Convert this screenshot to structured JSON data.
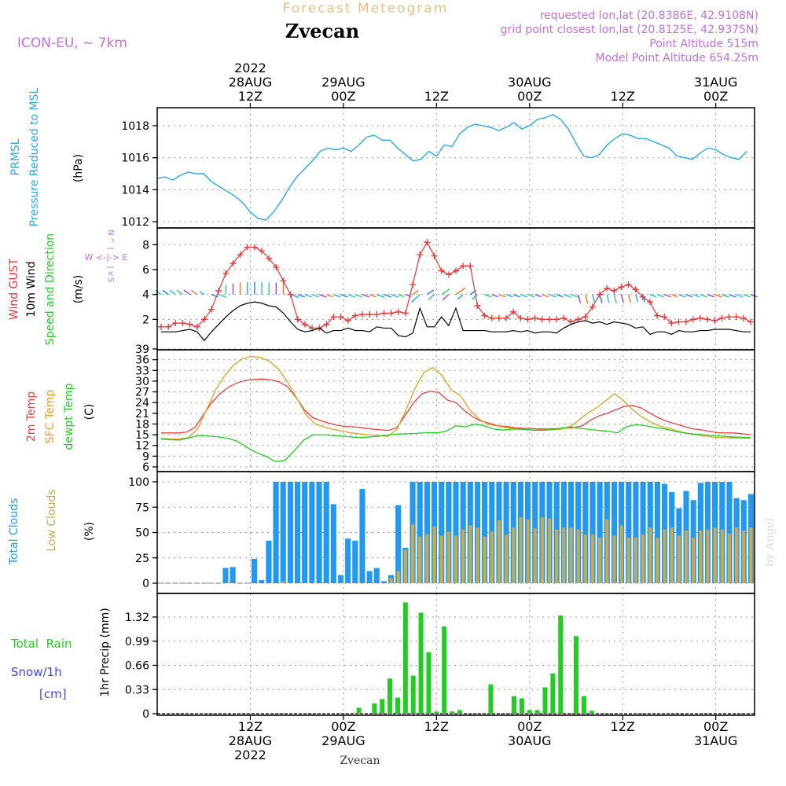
{
  "header": {
    "product_title": "Forecast Meteogram",
    "location": "Zvecan",
    "model": "ICON-EU, ~ 7km",
    "requested": "requested lon,lat (20.8386E, 42.9108N)",
    "grid_point": "grid point closest lon,lat (20.8125E, 42.9375N)",
    "point_altitude": "Point Altitude 515m",
    "model_altitude": "Model Point Altitude 654.25m",
    "watermark": "by Angel",
    "footer_location": "Zvecan"
  },
  "colors": {
    "pressure": "#2aa7e8",
    "gust": "#ee3333",
    "wind": "#000000",
    "temp2m": "#e84040",
    "sfc": "#dda020",
    "dewpt": "#22cc22",
    "total_clouds": "#2299ee",
    "low_clouds": "#c8a850",
    "rain": "#22cc22",
    "header_purple": "#c070e0",
    "header_gold": "#e8c080",
    "snow": "#4444ee"
  },
  "time_axis": {
    "top_labels": [
      {
        "t": 12,
        "lines": [
          "2022",
          "28AUG",
          "12Z"
        ]
      },
      {
        "t": 24,
        "lines": [
          "29AUG",
          "00Z"
        ]
      },
      {
        "t": 36,
        "lines": [
          "12Z"
        ]
      },
      {
        "t": 48,
        "lines": [
          "30AUG",
          "00Z"
        ]
      },
      {
        "t": 60,
        "lines": [
          "12Z"
        ]
      },
      {
        "t": 72,
        "lines": [
          "31AUG",
          "00Z"
        ]
      }
    ],
    "bottom_labels": [
      {
        "t": 12,
        "lines": [
          "12Z",
          "28AUG",
          "2022"
        ]
      },
      {
        "t": 24,
        "lines": [
          "00Z",
          "29AUG"
        ]
      },
      {
        "t": 36,
        "lines": [
          "12Z"
        ]
      },
      {
        "t": 48,
        "lines": [
          "00Z",
          "30AUG"
        ]
      },
      {
        "t": 60,
        "lines": [
          "12Z"
        ]
      },
      {
        "t": 72,
        "lines": [
          "00Z",
          "31AUG"
        ]
      }
    ]
  },
  "chart_data": [
    {
      "type": "line",
      "name": "pressure",
      "labels": [
        "PRMSL",
        "Pressure Reduced to MSL",
        "(hPa)"
      ],
      "yticks": [
        1012,
        1014,
        1016,
        1018
      ],
      "ylim": [
        1011.5,
        1019.0
      ],
      "x": [
        0,
        1,
        2,
        3,
        4,
        5,
        6,
        7,
        8,
        9,
        10,
        11,
        12,
        13,
        14,
        15,
        16,
        17,
        18,
        19,
        20,
        21,
        22,
        23,
        24,
        25,
        26,
        27,
        28,
        29,
        30,
        31,
        32,
        33,
        34,
        35,
        36,
        37,
        38,
        39,
        40,
        41,
        42,
        43,
        44,
        45,
        46,
        47,
        48,
        49,
        50,
        51,
        52,
        53,
        54,
        55,
        56,
        57,
        58,
        59,
        60,
        61,
        62,
        63,
        64,
        65,
        66,
        67,
        68,
        69,
        70,
        71,
        72,
        73,
        74,
        75,
        76
      ],
      "values": [
        1014.7,
        1014.8,
        1014.6,
        1014.9,
        1015.1,
        1015.0,
        1015.0,
        1014.5,
        1014.2,
        1013.9,
        1013.6,
        1013.2,
        1012.6,
        1012.2,
        1012.1,
        1012.6,
        1013.3,
        1014.1,
        1014.8,
        1015.3,
        1015.8,
        1016.4,
        1016.6,
        1016.5,
        1016.6,
        1016.4,
        1016.8,
        1017.3,
        1017.4,
        1017.1,
        1017.1,
        1016.6,
        1016.2,
        1015.8,
        1015.9,
        1016.4,
        1016.1,
        1016.8,
        1016.7,
        1017.5,
        1017.9,
        1018.1,
        1018.0,
        1017.9,
        1017.7,
        1017.9,
        1018.2,
        1017.8,
        1018.0,
        1018.4,
        1018.5,
        1018.7,
        1018.4,
        1017.8,
        1016.9,
        1016.1,
        1016.0,
        1016.2,
        1016.8,
        1017.2,
        1017.5,
        1017.4,
        1017.2,
        1017.2,
        1017.0,
        1016.8,
        1016.6,
        1016.1,
        1016.0,
        1015.9,
        1016.3,
        1016.6,
        1016.5,
        1016.2,
        1016.0,
        1015.9,
        1016.4
      ]
    },
    {
      "type": "line",
      "name": "wind",
      "labels": [
        "Wind GUST",
        "10m Wind",
        "Speed and Direction",
        "(m/s)"
      ],
      "compass": [
        "N",
        "^",
        "|",
        "W <-|-> E",
        "|",
        "v",
        "S"
      ],
      "yticks": [
        2,
        4,
        6,
        8
      ],
      "ylim": [
        0,
        9
      ],
      "gust": [
        1.4,
        1.4,
        1.7,
        1.7,
        1.6,
        1.4,
        2.0,
        2.8,
        4.3,
        5.7,
        6.5,
        7.2,
        7.8,
        7.8,
        7.5,
        6.9,
        6.2,
        5.1,
        4.0,
        2.0,
        1.6,
        1.3,
        1.3,
        1.6,
        2.2,
        2.2,
        1.9,
        2.3,
        2.4,
        2.4,
        2.4,
        2.5,
        2.5,
        2.6,
        2.5,
        4.8,
        7.2,
        8.2,
        7.1,
        5.9,
        5.6,
        5.9,
        6.3,
        6.3,
        3.1,
        2.3,
        2.1,
        2.1,
        2.1,
        2.6,
        2.1,
        2.0,
        2.1,
        2.0,
        2.0,
        2.0,
        2.1,
        1.8,
        2.0,
        2.2,
        3.0,
        4.0,
        4.5,
        4.3,
        4.6,
        4.8,
        4.4,
        3.8,
        3.4,
        2.3,
        2.2,
        1.7,
        1.8,
        1.8,
        2.0,
        2.1,
        2.0,
        1.9,
        2.1,
        2.2,
        2.2,
        2.1,
        1.8
      ],
      "wind": [
        1.0,
        1.0,
        1.0,
        1.1,
        1.2,
        1.0,
        0.3,
        1.0,
        1.6,
        2.2,
        2.7,
        3.1,
        3.3,
        3.4,
        3.3,
        3.1,
        3.0,
        2.5,
        1.8,
        1.2,
        1.0,
        1.1,
        1.3,
        0.9,
        1.1,
        1.1,
        1.3,
        1.1,
        1.1,
        1.0,
        1.4,
        1.3,
        1.3,
        0.7,
        0.6,
        0.9,
        2.9,
        1.4,
        1.4,
        2.2,
        1.5,
        2.9,
        1.1,
        1.1,
        1.1,
        1.1,
        1.0,
        1.0,
        1.0,
        1.1,
        1.0,
        1.1,
        0.9,
        1.0,
        1.0,
        0.9,
        1.3,
        1.6,
        1.8,
        1.9,
        1.7,
        1.8,
        1.6,
        1.8,
        1.7,
        1.6,
        1.3,
        1.4,
        0.8,
        1.0,
        1.0,
        0.8,
        1.1,
        1.0,
        1.0,
        1.1,
        1.1,
        1.2,
        1.2,
        1.2,
        1.1,
        1.0,
        1.0
      ]
    },
    {
      "type": "line",
      "name": "temperature",
      "labels": [
        "2m Temp",
        "SFC Temp",
        "dewpt Temp",
        "(C)"
      ],
      "yticks": [
        6,
        9,
        12,
        15,
        18,
        21,
        24,
        27,
        30,
        33,
        36,
        39
      ],
      "ylim": [
        6,
        39
      ],
      "x": [
        0,
        1,
        2,
        3,
        4,
        5,
        6,
        7,
        8,
        9,
        10,
        11,
        12,
        13,
        14,
        15,
        16,
        17,
        18,
        19,
        20,
        21,
        22,
        23,
        24,
        25,
        26,
        27,
        28,
        29,
        30,
        31,
        32,
        33,
        34,
        35,
        36,
        37,
        38,
        39,
        40,
        41,
        42,
        43,
        44,
        45,
        46,
        47,
        48,
        49,
        50,
        51,
        52,
        53,
        54,
        55,
        56,
        57,
        58,
        59,
        60,
        61,
        62,
        63,
        64,
        65,
        66,
        67,
        68,
        69,
        70,
        71,
        72,
        73,
        74,
        75,
        76
      ],
      "temp2m": [
        15.5,
        15.5,
        15.5,
        15.7,
        17.0,
        20.5,
        24.0,
        26.5,
        28.3,
        29.5,
        30.2,
        30.5,
        30.6,
        30.4,
        29.8,
        28.5,
        25.5,
        22.0,
        19.8,
        18.9,
        18.2,
        17.6,
        17.3,
        17.2,
        16.9,
        16.6,
        16.4,
        16.2,
        17.0,
        20.5,
        24.0,
        26.5,
        27.2,
        26.8,
        24.7,
        24.0,
        21.8,
        20.0,
        18.8,
        18.2,
        17.5,
        17.3,
        17.0,
        16.8,
        16.7,
        16.6,
        16.6,
        16.7,
        16.8,
        17.0,
        17.5,
        19.1,
        20.3,
        21.0,
        22.0,
        22.9,
        23.2,
        22.5,
        21.1,
        19.8,
        18.8,
        18.1,
        17.4,
        16.7,
        16.4,
        16.0,
        15.6,
        15.5,
        15.5,
        15.3,
        15.0
      ],
      "sfc": [
        14.0,
        13.8,
        13.8,
        14.2,
        16.5,
        22.0,
        27.5,
        31.5,
        34.5,
        36.3,
        36.9,
        36.6,
        35.5,
        33.2,
        29.5,
        25.0,
        20.5,
        18.0,
        17.2,
        16.5,
        16.0,
        15.5,
        15.2,
        15.0,
        14.8,
        14.5,
        16.5,
        22.0,
        28.0,
        32.5,
        33.8,
        31.5,
        27.5,
        26.0,
        22.0,
        19.5,
        17.9,
        17.5,
        17.0,
        16.8,
        16.5,
        16.3,
        16.3,
        16.4,
        16.5,
        17.0,
        19.0,
        21.0,
        22.5,
        24.5,
        26.5,
        24.5,
        22.0,
        20.0,
        18.5,
        17.4,
        16.8,
        16.0,
        15.4,
        15.0,
        14.6,
        14.3,
        14.2,
        14.1,
        14.0,
        14.0
      ],
      "dewpt": [
        13.8,
        13.6,
        13.5,
        14.2,
        14.8,
        14.6,
        14.4,
        14.0,
        13.2,
        11.5,
        10.0,
        9.0,
        7.5,
        7.8,
        10.5,
        13.5,
        15.0,
        15.0,
        14.8,
        14.6,
        14.4,
        14.2,
        14.4,
        14.6,
        15.0,
        15.2,
        15.3,
        15.4,
        15.6,
        15.5,
        16.0,
        17.5,
        17.2,
        18.0,
        17.5,
        16.6,
        16.3,
        16.6,
        16.5,
        16.3,
        16.2,
        16.4,
        16.8,
        17.2,
        16.8,
        16.5,
        16.2,
        16.0,
        15.5,
        17.3,
        17.8,
        17.5,
        17.0,
        16.6,
        16.0,
        15.5,
        15.2,
        15.0,
        14.8,
        14.6,
        14.4,
        14.3,
        14.2
      ]
    },
    {
      "type": "bar",
      "name": "clouds",
      "labels": [
        "Total Clouds",
        "Low Clouds",
        "(%)"
      ],
      "yticks": [
        0,
        25,
        50,
        75,
        100
      ],
      "ylim": [
        -6,
        106
      ],
      "total": [
        0,
        0,
        0,
        0,
        0,
        0,
        0,
        0,
        0,
        15,
        16,
        0,
        0,
        24,
        3,
        42,
        100,
        100,
        100,
        100,
        100,
        100,
        100,
        100,
        78,
        8,
        44,
        42,
        93,
        12,
        15,
        2,
        8,
        77,
        35,
        100,
        100,
        100,
        100,
        100,
        100,
        100,
        100,
        100,
        100,
        100,
        100,
        100,
        100,
        100,
        100,
        100,
        100,
        100,
        100,
        100,
        100,
        100,
        100,
        100,
        100,
        100,
        100,
        100,
        100,
        100,
        100,
        100,
        100,
        100,
        98,
        90,
        74,
        91,
        82,
        99,
        100,
        100,
        100,
        100,
        84,
        82,
        88
      ],
      "low": [
        0,
        0,
        0,
        0,
        0,
        0,
        0,
        0,
        0,
        0,
        0,
        0,
        0,
        0,
        0,
        0,
        0,
        2,
        0,
        0,
        0,
        0,
        0,
        0,
        0,
        0,
        0,
        0,
        0,
        0,
        0,
        0,
        5,
        12,
        33,
        58,
        46,
        48,
        56,
        47,
        51,
        47,
        53,
        57,
        55,
        46,
        51,
        62,
        48,
        55,
        65,
        63,
        54,
        65,
        64,
        53,
        55,
        55,
        53,
        48,
        48,
        45,
        63,
        47,
        57,
        45,
        45,
        48,
        55,
        45,
        53,
        55,
        47,
        52,
        45,
        52,
        53,
        55,
        53,
        49,
        55,
        52,
        55
      ]
    },
    {
      "type": "bar",
      "name": "precip",
      "labels": [
        "Total  Rain",
        "Snow/1h",
        "[cm]",
        "1hr Precip (mm)"
      ],
      "yticks": [
        0,
        0.33,
        0.66,
        0.99,
        1.32
      ],
      "ylim": [
        0,
        1.57
      ],
      "x": [
        26,
        28,
        29,
        30,
        31,
        32,
        33,
        34,
        35,
        36,
        37,
        38,
        39,
        43,
        46,
        47,
        48,
        49,
        50,
        51,
        52,
        54,
        55,
        56,
        57,
        58,
        59,
        60
      ],
      "values": [
        0.08,
        0.14,
        0.2,
        0.48,
        0.22,
        1.52,
        0.52,
        1.38,
        0.84,
        0.03,
        1.19,
        0.03,
        0.05,
        0.4,
        0.24,
        0.21,
        0.05,
        0.05,
        0.36,
        0.55,
        1.34,
        1.06,
        0.24,
        0.04,
        0.0,
        0.0,
        0.0,
        0.0
      ]
    }
  ]
}
